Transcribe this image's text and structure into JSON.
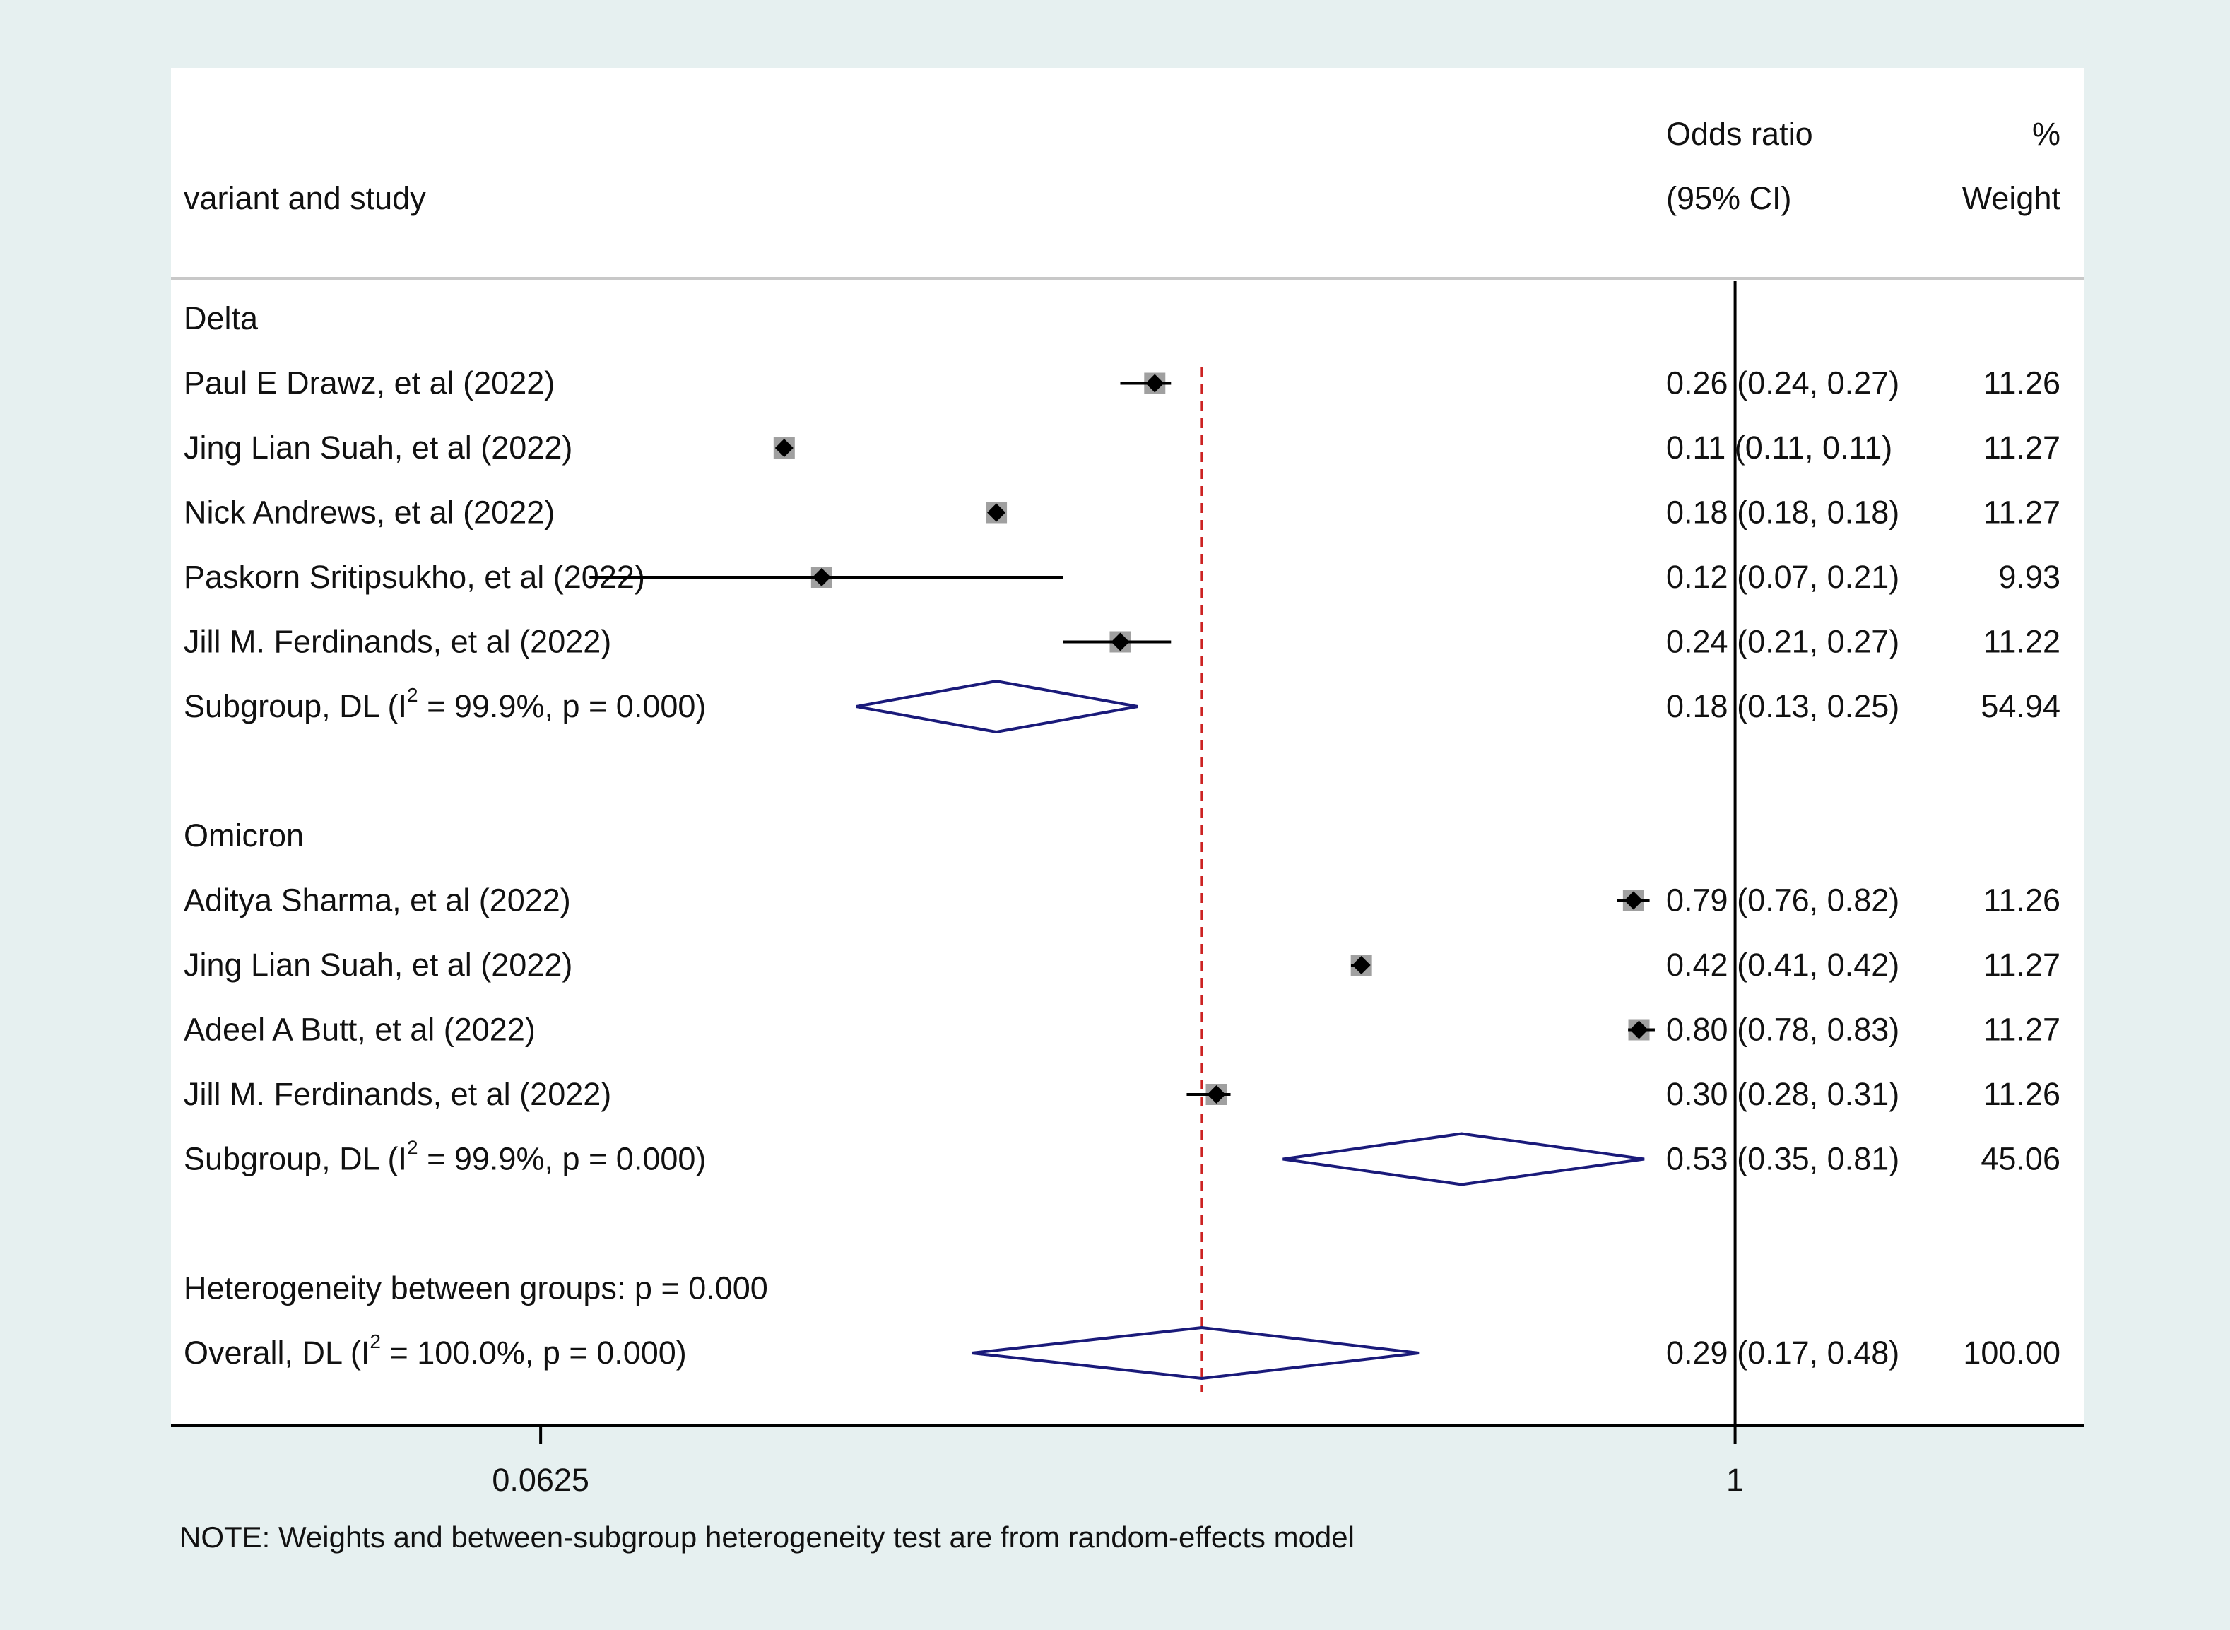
{
  "chart_data": {
    "type": "forest",
    "header": {
      "col_study": "variant and study",
      "col_or_line1": "Odds ratio",
      "col_or_line2": "(95% CI)",
      "col_w_line1": "%",
      "col_w_line2": "Weight"
    },
    "x_scale": "log",
    "xlim": [
      0.0265,
      2.25
    ],
    "null_value": 1,
    "ticks": [
      {
        "value": 0.0625,
        "label": "0.0625"
      },
      {
        "value": 1,
        "label": "1"
      }
    ],
    "rows": [
      {
        "kind": "group",
        "label": "Delta"
      },
      {
        "kind": "study",
        "label": "Paul E Drawz, et al (2022)",
        "or": 0.26,
        "lo": 0.24,
        "hi": 0.27,
        "ci_text": "0.26 (0.24, 0.27)",
        "weight": 11.26,
        "weight_text": "11.26"
      },
      {
        "kind": "study",
        "label": "Jing Lian Suah, et al (2022)",
        "or": 0.11,
        "lo": 0.11,
        "hi": 0.11,
        "ci_text": "0.11 (0.11, 0.11)",
        "weight": 11.27,
        "weight_text": "11.27"
      },
      {
        "kind": "study",
        "label": "Nick Andrews, et al (2022)",
        "or": 0.18,
        "lo": 0.18,
        "hi": 0.18,
        "ci_text": "0.18 (0.18, 0.18)",
        "weight": 11.27,
        "weight_text": "11.27"
      },
      {
        "kind": "study",
        "label": "Paskorn Sritipsukho, et al (2022)",
        "or": 0.12,
        "lo": 0.07,
        "hi": 0.21,
        "ci_text": "0.12 (0.07, 0.21)",
        "weight": 9.93,
        "weight_text": "9.93"
      },
      {
        "kind": "study",
        "label": "Jill M. Ferdinands, et al (2022)",
        "or": 0.24,
        "lo": 0.21,
        "hi": 0.27,
        "ci_text": "0.24 (0.21, 0.27)",
        "weight": 11.22,
        "weight_text": "11.22"
      },
      {
        "kind": "subgroup",
        "label_pre": "Subgroup, DL (I",
        "label_sup": "2",
        "label_post": " = 99.9%, p = 0.000)",
        "or": 0.18,
        "lo": 0.13,
        "hi": 0.25,
        "ci_text": "0.18 (0.13, 0.25)",
        "weight_text": "54.94"
      },
      {
        "kind": "blank"
      },
      {
        "kind": "group",
        "label": "Omicron"
      },
      {
        "kind": "study",
        "label": "Aditya Sharma, et al (2022)",
        "or": 0.79,
        "lo": 0.76,
        "hi": 0.82,
        "ci_text": "0.79 (0.76, 0.82)",
        "weight": 11.26,
        "weight_text": "11.26"
      },
      {
        "kind": "study",
        "label": "Jing Lian Suah, et al (2022)",
        "or": 0.42,
        "lo": 0.41,
        "hi": 0.42,
        "ci_text": "0.42 (0.41, 0.42)",
        "weight": 11.27,
        "weight_text": "11.27"
      },
      {
        "kind": "study",
        "label": "Adeel A Butt, et al (2022)",
        "or": 0.8,
        "lo": 0.78,
        "hi": 0.83,
        "ci_text": "0.80 (0.78, 0.83)",
        "weight": 11.27,
        "weight_text": "11.27"
      },
      {
        "kind": "study",
        "label": "Jill M. Ferdinands, et al (2022)",
        "or": 0.3,
        "lo": 0.28,
        "hi": 0.31,
        "ci_text": "0.30 (0.28, 0.31)",
        "weight": 11.26,
        "weight_text": "11.26"
      },
      {
        "kind": "subgroup",
        "label_pre": "Subgroup, DL (I",
        "label_sup": "2",
        "label_post": " = 99.9%, p = 0.000)",
        "or": 0.53,
        "lo": 0.35,
        "hi": 0.81,
        "ci_text": "0.53 (0.35, 0.81)",
        "weight_text": "45.06"
      },
      {
        "kind": "blank"
      },
      {
        "kind": "note",
        "label": "Heterogeneity between groups: p = 0.000"
      },
      {
        "kind": "overall",
        "label_pre": "Overall, DL (I",
        "label_sup": "2",
        "label_post": " = 100.0%, p = 0.000)",
        "or": 0.29,
        "lo": 0.17,
        "hi": 0.48,
        "ci_text": "0.29 (0.17, 0.48)",
        "weight_text": "100.00"
      }
    ],
    "footnote": "NOTE: Weights and between-subgroup heterogeneity test are from random-effects model",
    "colors": {
      "background": "#e6f0f0",
      "panel": "#ffffff",
      "point": "#000000",
      "weight_box": "#a0a0a0",
      "diamond": "#1a1a7a",
      "overall_line": "#cc2222",
      "axis": "#000000",
      "separator": "#c8c8c8"
    }
  }
}
